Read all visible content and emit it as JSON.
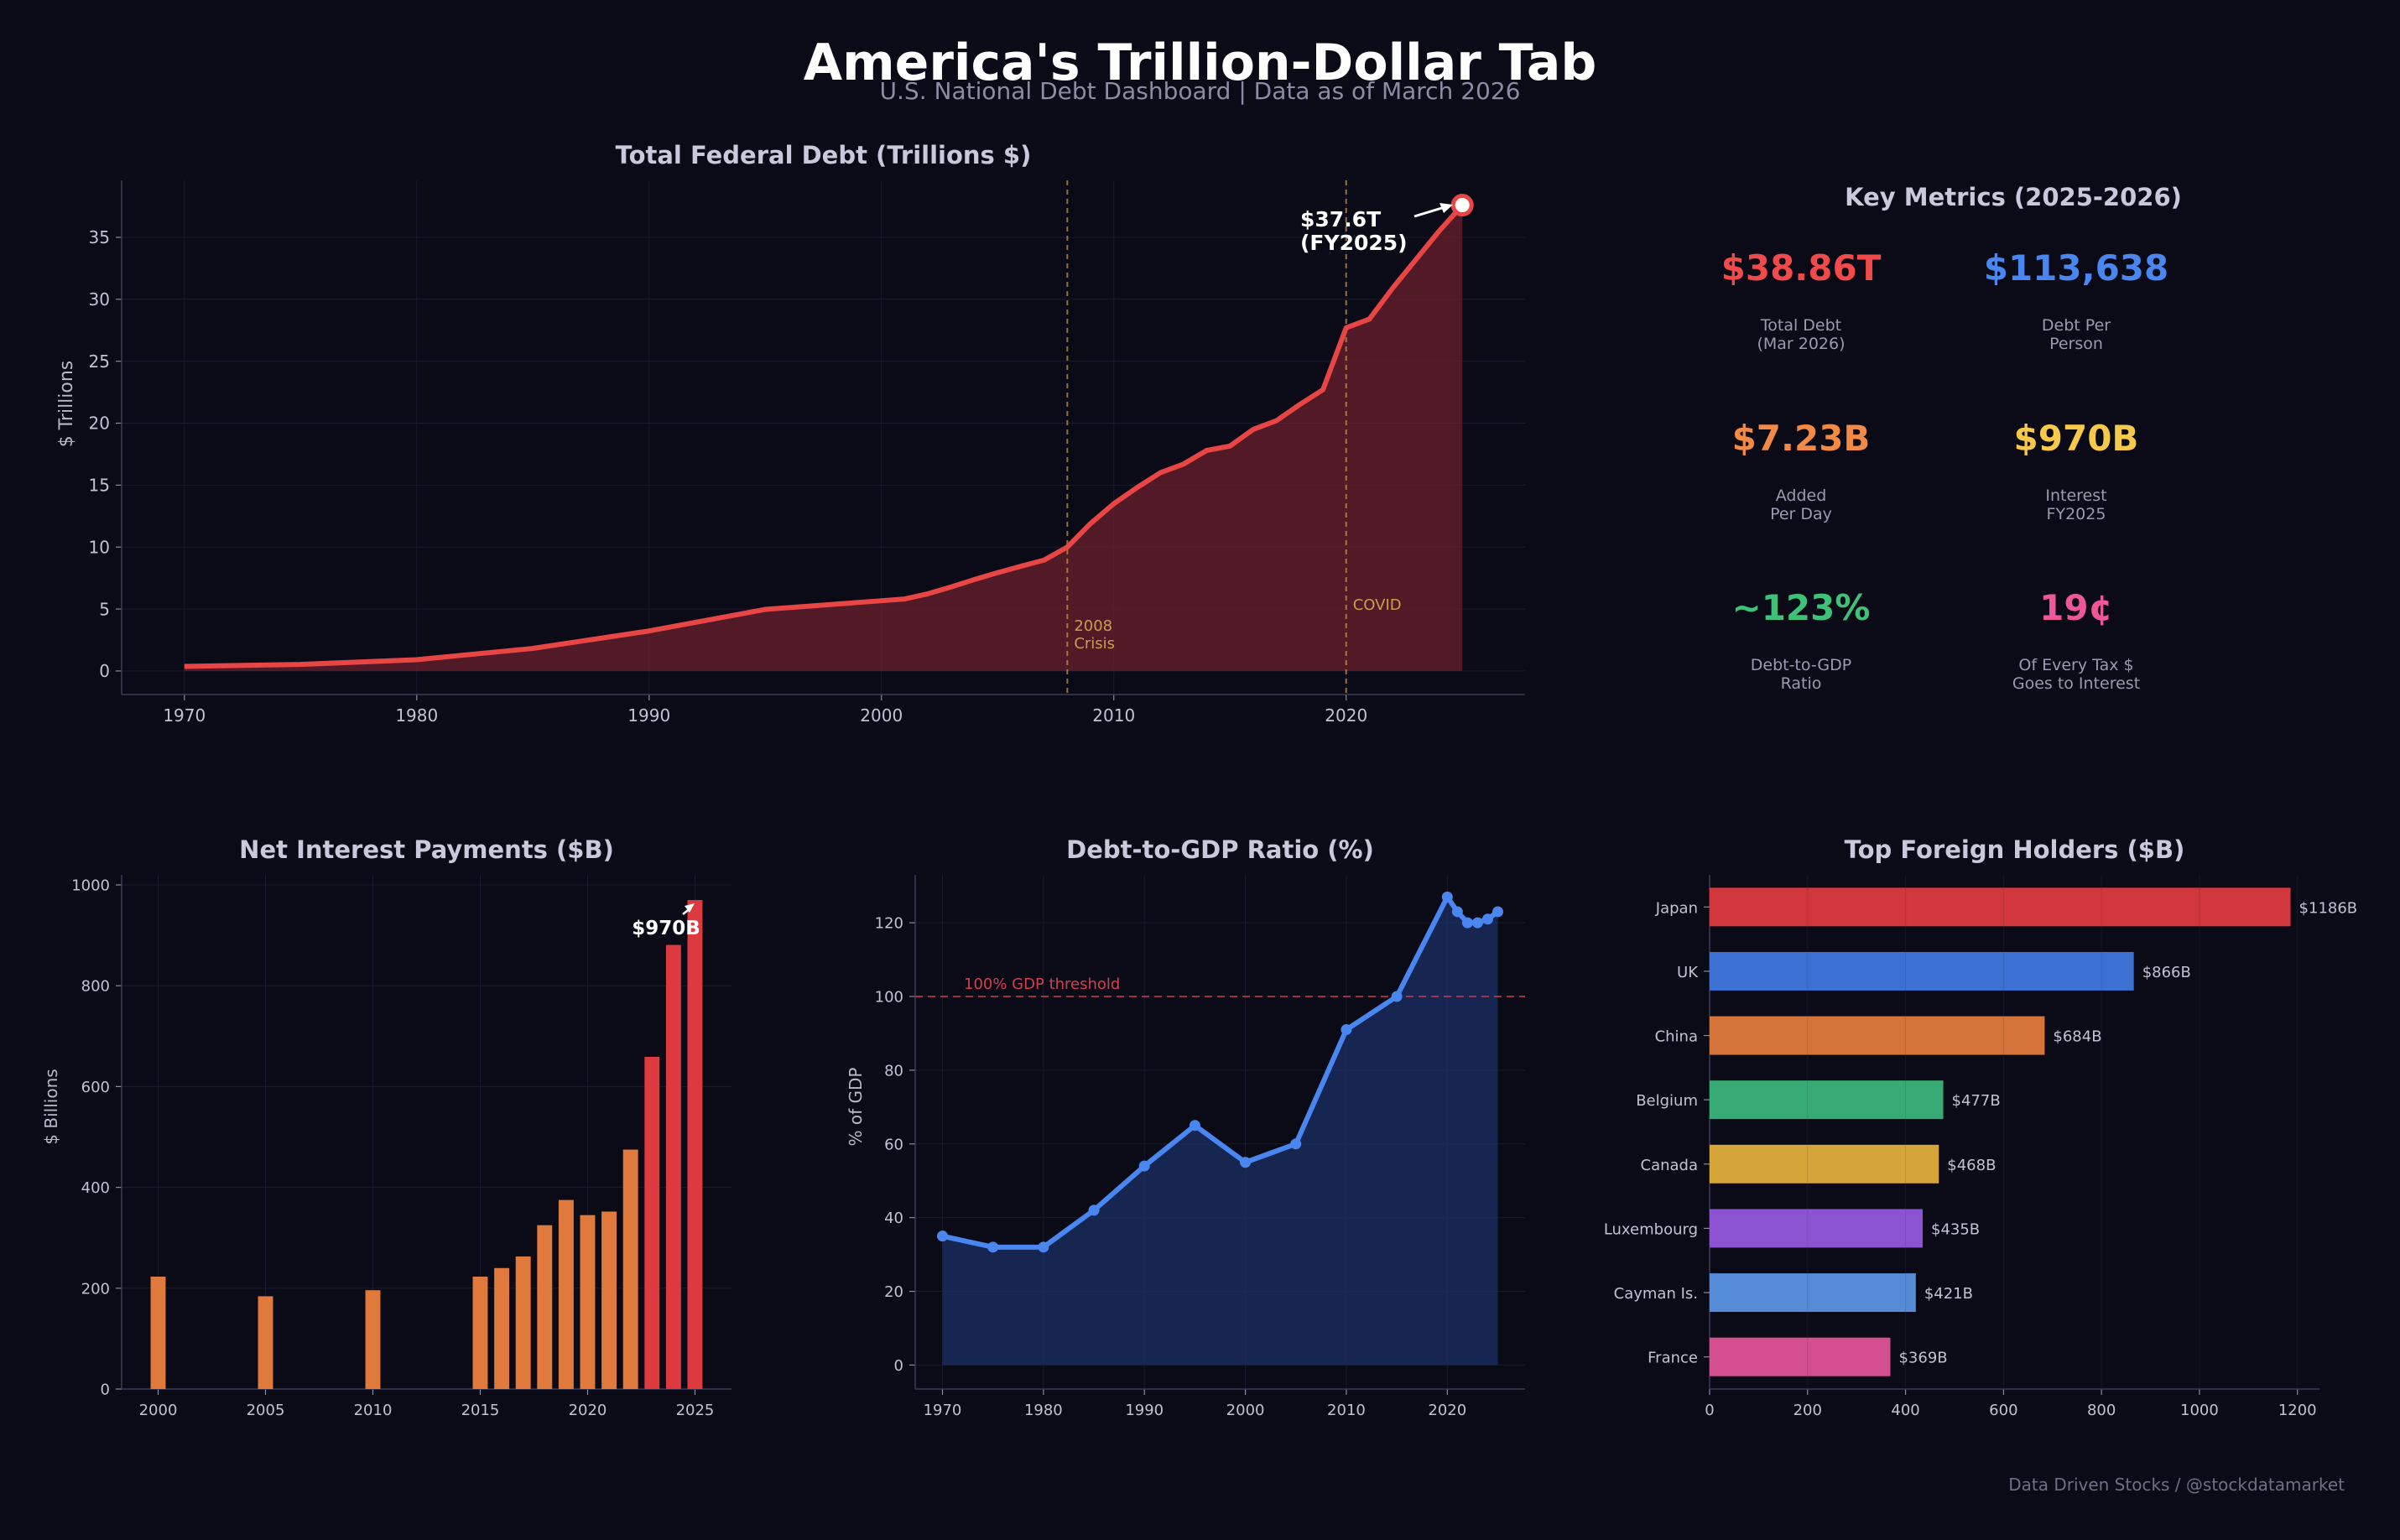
{
  "header": {
    "title": "America's Trillion-Dollar Tab",
    "subtitle": "U.S. National Debt Dashboard  |  Data as of March 2026"
  },
  "colors": {
    "background": "#0b0a17",
    "debt_red": "#e84545",
    "blue": "#4a86f0",
    "orange": "#e8813d",
    "gold": "#f7c94b",
    "green": "#3ec27a",
    "pink": "#f0569a",
    "event": "#c8a050"
  },
  "chart_data": [
    {
      "id": "debt",
      "type": "area",
      "title": "Total Federal Debt (Trillions $)",
      "xlabel": "",
      "ylabel": "$ Trillions",
      "xlim": [
        1967.3,
        2027.7
      ],
      "ylim": [
        -1.9,
        39.6
      ],
      "xticks": [
        1970,
        1980,
        1990,
        2000,
        2010,
        2020
      ],
      "yticks": [
        0,
        5,
        10,
        15,
        20,
        25,
        30,
        35
      ],
      "x": [
        1970,
        1975,
        1980,
        1985,
        1990,
        1995,
        2000,
        2001,
        2002,
        2003,
        2004,
        2005,
        2006,
        2007,
        2008,
        2009,
        2010,
        2011,
        2012,
        2013,
        2014,
        2015,
        2016,
        2017,
        2018,
        2019,
        2020,
        2021,
        2022,
        2023,
        2024,
        2025
      ],
      "y": [
        0.37,
        0.53,
        0.91,
        1.82,
        3.23,
        4.97,
        5.67,
        5.81,
        6.23,
        6.78,
        7.38,
        7.93,
        8.45,
        8.95,
        10.0,
        11.9,
        13.5,
        14.8,
        16.0,
        16.7,
        17.8,
        18.15,
        19.5,
        20.2,
        21.5,
        22.7,
        27.7,
        28.4,
        30.9,
        33.2,
        35.5,
        37.6
      ],
      "annotation": {
        "text": "$37.6T\n(FY2025)",
        "x": 2025,
        "y": 37.6
      },
      "events": [
        {
          "x": 2008,
          "label": "2008\nCrisis"
        },
        {
          "x": 2020,
          "label": "COVID"
        }
      ]
    },
    {
      "id": "interest",
      "type": "bar",
      "title": "Net Interest Payments ($B)",
      "ylabel": "$ Billions",
      "xlim": [
        1998.3,
        2026.7
      ],
      "ylim": [
        0,
        1020
      ],
      "xticks": [
        2000,
        2005,
        2010,
        2015,
        2020,
        2025
      ],
      "yticks": [
        0,
        200,
        400,
        600,
        800,
        1000
      ],
      "x": [
        2000,
        2005,
        2010,
        2015,
        2016,
        2017,
        2018,
        2019,
        2020,
        2021,
        2022,
        2023,
        2024,
        2025
      ],
      "values": [
        223,
        184,
        196,
        223,
        240,
        263,
        325,
        375,
        345,
        352,
        475,
        659,
        881,
        970
      ],
      "highlight_from": 2023,
      "annotation": {
        "text": "$970B",
        "x": 2025,
        "y": 970
      }
    },
    {
      "id": "gdp",
      "type": "line",
      "title": "Debt-to-GDP Ratio (%)",
      "ylabel": "% of GDP",
      "xlim": [
        1967.3,
        2027.7
      ],
      "ylim": [
        -6.5,
        133
      ],
      "xticks": [
        1970,
        1980,
        1990,
        2000,
        2010,
        2020
      ],
      "yticks": [
        0,
        20,
        40,
        60,
        80,
        100,
        120
      ],
      "x": [
        1970,
        1975,
        1980,
        1985,
        1990,
        1995,
        2000,
        2005,
        2010,
        2015,
        2020,
        2021,
        2022,
        2023,
        2024,
        2025
      ],
      "y": [
        35,
        32,
        32,
        42,
        54,
        65,
        55,
        60,
        91,
        100,
        127,
        123,
        120,
        120,
        121,
        123
      ],
      "threshold": {
        "y": 100,
        "label": "100% GDP threshold"
      }
    },
    {
      "id": "holders",
      "type": "barh",
      "title": "Top Foreign Holders ($B)",
      "xlim": [
        0,
        1245
      ],
      "xticks": [
        0,
        200,
        400,
        600,
        800,
        1000,
        1200
      ],
      "categories": [
        "Japan",
        "UK",
        "China",
        "Belgium",
        "Canada",
        "Luxembourg",
        "Cayman Is.",
        "France"
      ],
      "values": [
        1186,
        866,
        684,
        477,
        468,
        435,
        421,
        369
      ],
      "labels": [
        "$1186B",
        "$866B",
        "$684B",
        "$477B",
        "$468B",
        "$435B",
        "$421B",
        "$369B"
      ],
      "bar_colors": [
        "#dc3a3e",
        "#3f76dc",
        "#e07a3c",
        "#3bb47a",
        "#e0ae3c",
        "#9257dc",
        "#5b93df",
        "#de5396"
      ]
    }
  ],
  "key_metrics": {
    "title": "Key Metrics (2025-2026)",
    "items": [
      {
        "value": "$38.86T",
        "label": "Total Debt\n(Mar 2026)",
        "color": "#f04a4a"
      },
      {
        "value": "$113,638",
        "label": "Debt Per\nPerson",
        "color": "#4a86f0"
      },
      {
        "value": "$7.23B",
        "label": "Added\nPer Day",
        "color": "#f28a46"
      },
      {
        "value": "$970B",
        "label": "Interest\nFY2025",
        "color": "#f7c94b"
      },
      {
        "value": "~123%",
        "label": "Debt-to-GDP\nRatio",
        "color": "#3ec27a"
      },
      {
        "value": "19¢",
        "label": "Of Every Tax $\nGoes to Interest",
        "color": "#f0569a"
      }
    ]
  },
  "footer": {
    "credit": "Data Driven Stocks / @stockdatamarket"
  }
}
